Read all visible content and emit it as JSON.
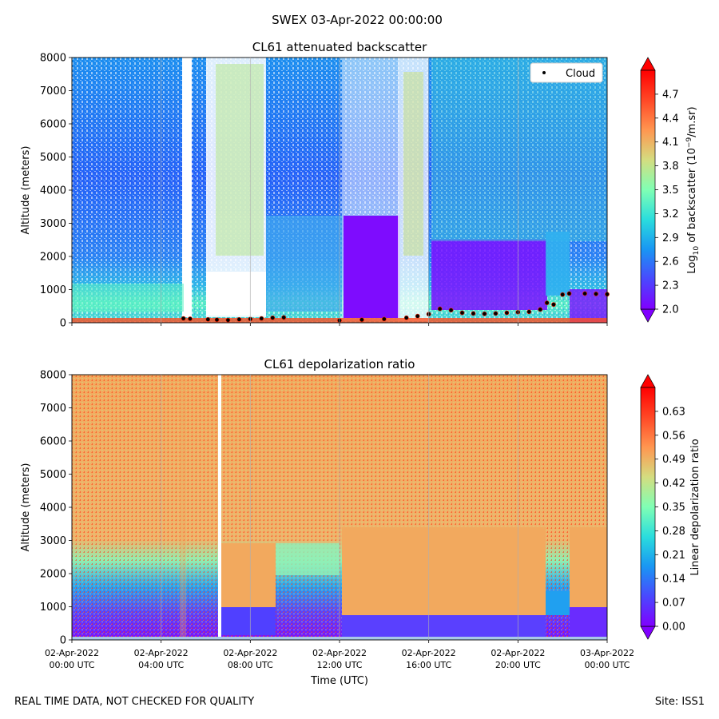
{
  "suptitle": "SWEX 03-Apr-2022 00:00:00",
  "footer": {
    "left": "REAL TIME DATA, NOT CHECKED FOR QUALITY",
    "right": "Site: ISS1"
  },
  "colors": {
    "rainbow": [
      "#8000ff",
      "#4a48fe",
      "#1996f3",
      "#2adddd",
      "#80ffb4",
      "#d4dd80",
      "#ff9650",
      "#ff4826",
      "#ff0000"
    ],
    "cloud_marker": "#000000",
    "cloud_edge": "#ff2200"
  },
  "chart_data": [
    {
      "type": "heatmap",
      "title": "CL61 attenuated backscatter",
      "ylabel": "Altitude (meters)",
      "xlabel": "",
      "xlim": [
        0,
        24
      ],
      "ylim": [
        0,
        8000
      ],
      "yticks": [
        0,
        1000,
        2000,
        3000,
        4000,
        5000,
        6000,
        7000,
        8000
      ],
      "xticks": [
        0,
        4,
        8,
        12,
        16,
        20,
        24
      ],
      "colorbar": {
        "label_prefix": "Log",
        "label_sub": "10",
        "label_mid": " of backscatter (10",
        "label_sup": "−9",
        "label_suffix": "/m.sr)",
        "min": 2.0,
        "max": 5.0,
        "ticks": [
          "2.0",
          "2.3",
          "2.6",
          "2.9",
          "3.2",
          "3.5",
          "3.8",
          "4.1",
          "4.4",
          "4.7"
        ]
      },
      "legend": {
        "label": "Cloud",
        "position": "top-right"
      },
      "cloud_base": {
        "hours": [
          5.0,
          5.3,
          6.1,
          6.5,
          7.0,
          7.5,
          8.0,
          8.5,
          9.0,
          9.5,
          12.0,
          13.0,
          14.0,
          15.0,
          15.5,
          16.0,
          16.5,
          17.0,
          17.5,
          18.0,
          18.5,
          19.0,
          19.5,
          20.0,
          20.5,
          21.0,
          21.3,
          21.6,
          22.0,
          22.3,
          23.0,
          23.5,
          24.0
        ],
        "altitude_m": [
          130,
          120,
          100,
          90,
          80,
          100,
          110,
          130,
          150,
          160,
          70,
          90,
          110,
          150,
          200,
          260,
          420,
          380,
          300,
          280,
          270,
          280,
          300,
          320,
          330,
          400,
          600,
          550,
          850,
          880,
          880,
          870,
          860
        ]
      }
    },
    {
      "type": "heatmap",
      "title": "CL61 depolarization ratio",
      "ylabel": "Altitude (meters)",
      "xlabel": "Time (UTC)",
      "xlim": [
        0,
        24
      ],
      "ylim": [
        0,
        8000
      ],
      "yticks": [
        0,
        1000,
        2000,
        3000,
        4000,
        5000,
        6000,
        7000,
        8000
      ],
      "xticks": [
        0,
        4,
        8,
        12,
        16,
        20,
        24
      ],
      "xtick_labels": [
        [
          "02-Apr-2022",
          "00:00 UTC"
        ],
        [
          "02-Apr-2022",
          "04:00 UTC"
        ],
        [
          "02-Apr-2022",
          "08:00 UTC"
        ],
        [
          "02-Apr-2022",
          "12:00 UTC"
        ],
        [
          "02-Apr-2022",
          "16:00 UTC"
        ],
        [
          "02-Apr-2022",
          "20:00 UTC"
        ],
        [
          "03-Apr-2022",
          "00:00 UTC"
        ]
      ],
      "colorbar": {
        "label": "Linear depolarization ratio",
        "min": 0.0,
        "max": 0.7,
        "ticks": [
          "0.00",
          "0.07",
          "0.14",
          "0.21",
          "0.28",
          "0.35",
          "0.42",
          "0.49",
          "0.56",
          "0.63"
        ]
      }
    }
  ]
}
